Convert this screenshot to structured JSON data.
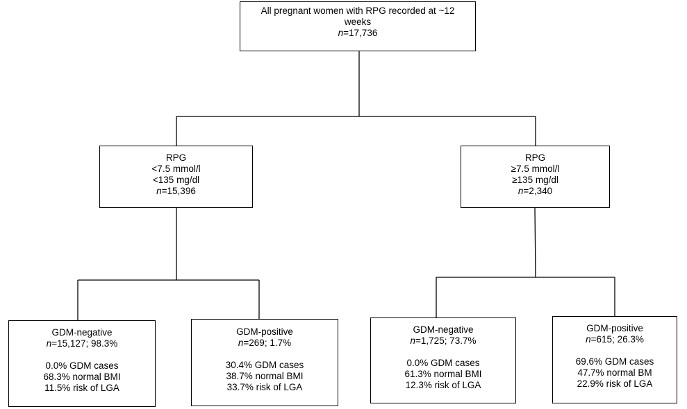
{
  "root": {
    "title_line1": "All pregnant women with RPG recorded at ~12",
    "title_line2": "weeks",
    "n_label": "n",
    "n_value": "=17,736"
  },
  "left_group": {
    "label": "RPG",
    "threshold_mmol": "<7.5 mmol/l",
    "threshold_mgdl": "<135 mg/dl",
    "n_label": "n",
    "n_value": "=15,396",
    "negative": {
      "title": "GDM-negative",
      "n_label": "n",
      "n_value": "=15,127; 98.3%",
      "gdm_cases": "0.0% GDM cases",
      "normal_bmi": "68.3% normal BMI",
      "lga_risk": "11.5% risk of LGA"
    },
    "positive": {
      "title": "GDM-positive",
      "n_label": "n",
      "n_value": "=269; 1.7%",
      "gdm_cases": "30.4% GDM cases",
      "normal_bmi": "38.7% normal BMI",
      "lga_risk": "33.7% risk of LGA"
    }
  },
  "right_group": {
    "label": "RPG",
    "threshold_mmol": "≥7.5 mmol/l",
    "threshold_mgdl": "≥135 mg/dl",
    "n_label": "n",
    "n_value": "=2,340",
    "negative": {
      "title": "GDM-negative",
      "n_label": "n",
      "n_value": "=1,725; 73.7%",
      "gdm_cases": "0.0% GDM cases",
      "normal_bmi": "61.3% normal BMI",
      "lga_risk": "12.3% risk of LGA"
    },
    "positive": {
      "title": "GDM-positive",
      "n_label": "n",
      "n_value": "=615; 26.3%",
      "gdm_cases": "69.6% GDM cases",
      "normal_bmi": "47.7% normal BM",
      "lga_risk": "22.9% risk of LGA"
    }
  }
}
